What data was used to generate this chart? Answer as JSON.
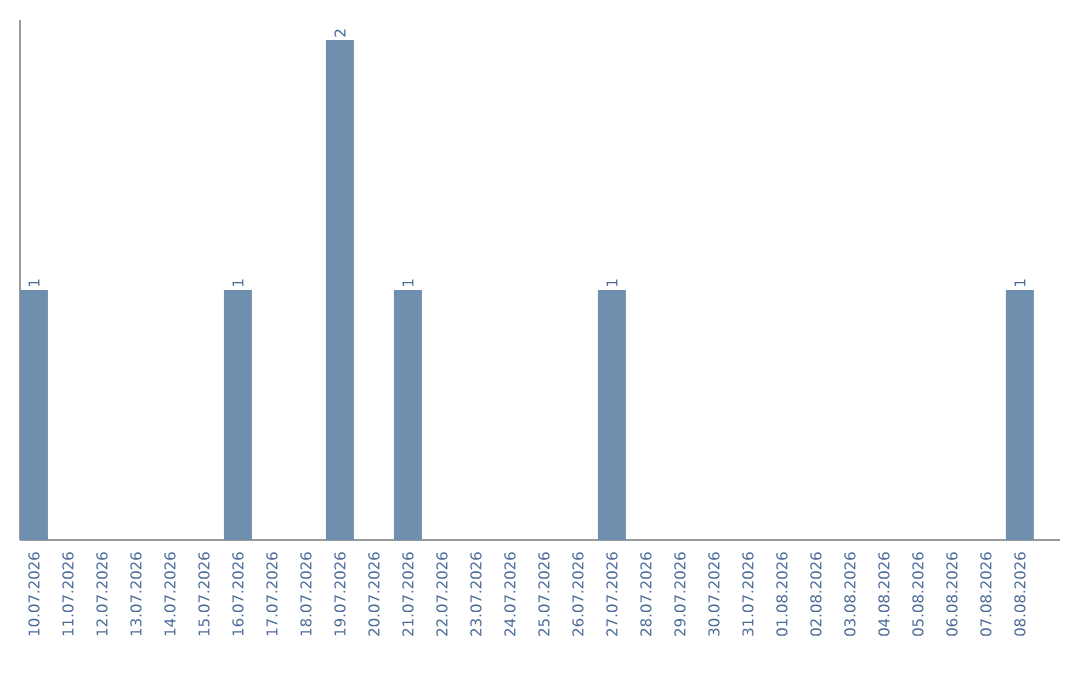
{
  "chart_data": {
    "type": "bar",
    "categories": [
      "10.07.2026",
      "11.07.2026",
      "12.07.2026",
      "13.07.2026",
      "14.07.2026",
      "15.07.2026",
      "16.07.2026",
      "17.07.2026",
      "18.07.2026",
      "19.07.2026",
      "20.07.2026",
      "21.07.2026",
      "22.07.2026",
      "23.07.2026",
      "24.07.2026",
      "25.07.2026",
      "26.07.2026",
      "27.07.2026",
      "28.07.2026",
      "29.07.2026",
      "30.07.2026",
      "31.07.2026",
      "01.08.2026",
      "02.08.2026",
      "03.08.2026",
      "04.08.2026",
      "05.08.2026",
      "06.08.2026",
      "07.08.2026",
      "08.08.2026"
    ],
    "values": [
      1,
      0,
      0,
      0,
      0,
      0,
      1,
      0,
      0,
      2,
      0,
      1,
      0,
      0,
      0,
      0,
      0,
      1,
      0,
      0,
      0,
      0,
      0,
      0,
      0,
      0,
      0,
      0,
      0,
      1
    ],
    "value_labels": [
      "1",
      null,
      null,
      null,
      null,
      null,
      "1",
      null,
      null,
      "2",
      null,
      "1",
      null,
      null,
      null,
      null,
      null,
      "1",
      null,
      null,
      null,
      null,
      null,
      null,
      null,
      null,
      null,
      null,
      null,
      "1"
    ],
    "color": "#6f8fae",
    "ylim": [
      0,
      2.08
    ],
    "tick_labels": "x",
    "grid": false
  }
}
